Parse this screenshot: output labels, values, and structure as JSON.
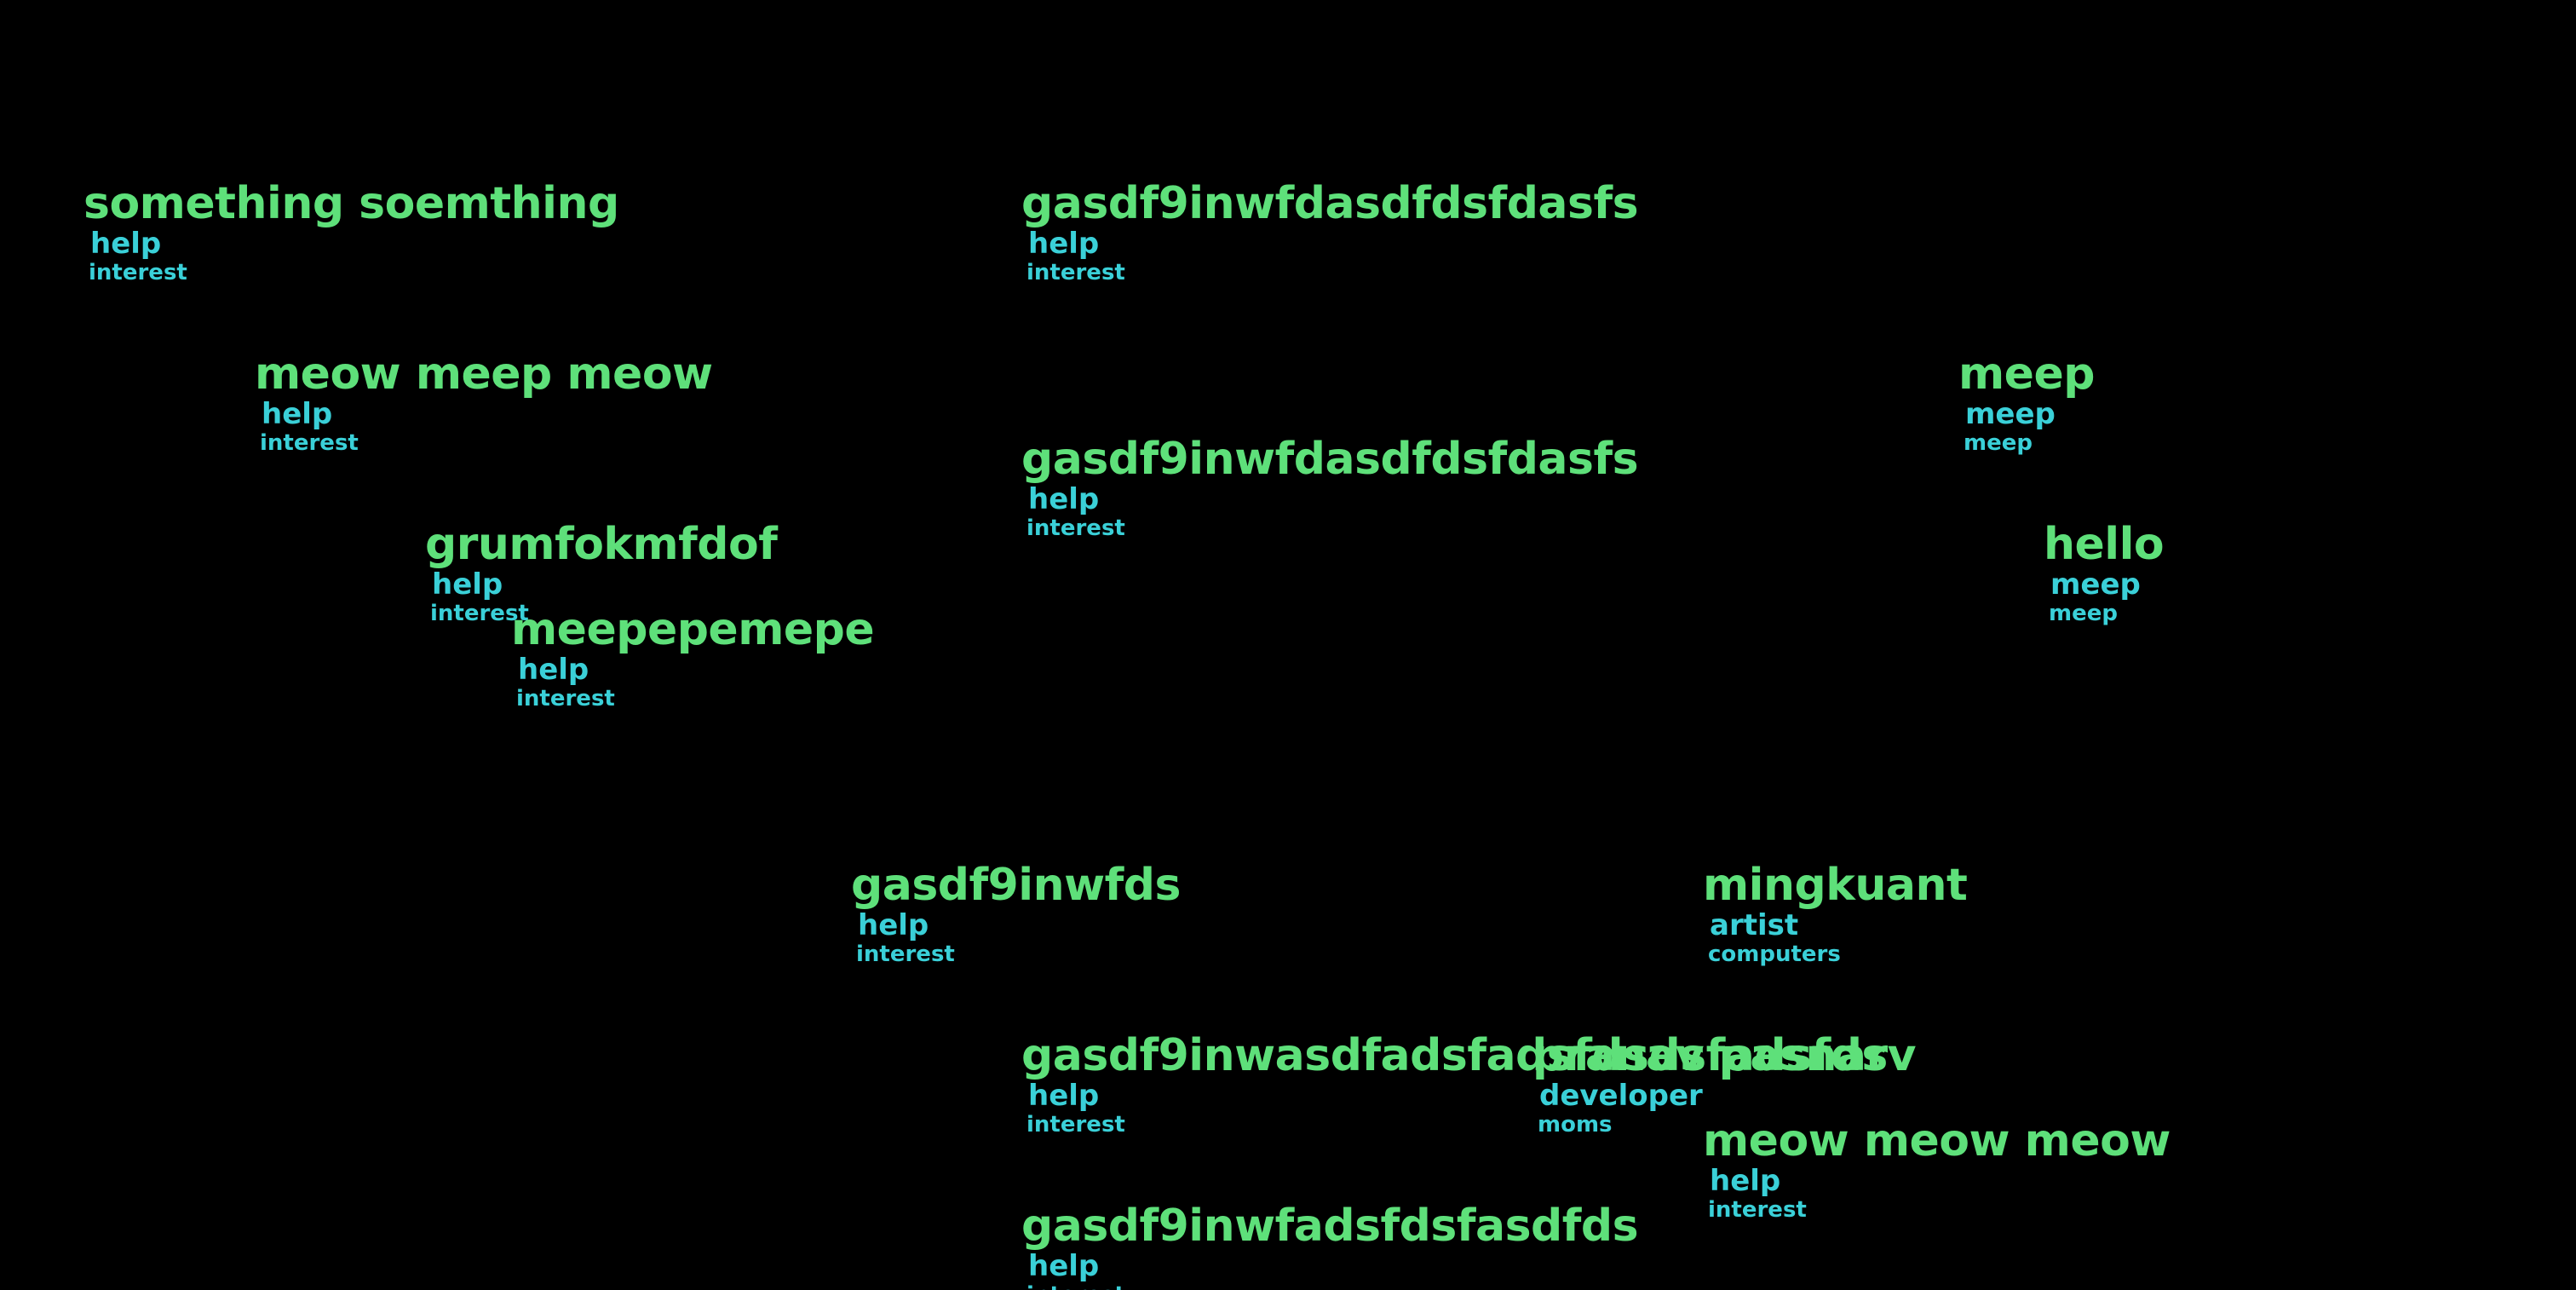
{
  "colors": {
    "background": "#000000",
    "name": "#5ee07a",
    "role": "#3ad0d8",
    "tag": "#3ad0d8"
  },
  "people": [
    {
      "name": "something soemthing",
      "role": "help",
      "tag": "interest"
    },
    {
      "name": "gasdf9inwfdasdfdsfdasfs",
      "role": "help",
      "tag": "interest"
    },
    {
      "name": "meow meep meow",
      "role": "help",
      "tag": "interest"
    },
    {
      "name": "meep",
      "role": "meep",
      "tag": "meep"
    },
    {
      "name": "gasdf9inwfdasdfdsfdasfs",
      "role": "help",
      "tag": "interest"
    },
    {
      "name": "grumfokmfdof",
      "role": "help",
      "tag": "interest"
    },
    {
      "name": "hello",
      "role": "meep",
      "tag": "meep"
    },
    {
      "name": "meepepemepe",
      "role": "help",
      "tag": "interest"
    },
    {
      "name": "gasdf9inwfds",
      "role": "help",
      "tag": "interest"
    },
    {
      "name": "mingkuant",
      "role": "artist",
      "tag": "computers"
    },
    {
      "name": "gasdf9inwasdfadsfadsfdsdsfadsfds",
      "role": "help",
      "tag": "interest"
    },
    {
      "name": "pranav pasnarv",
      "role": "developer",
      "tag": "moms"
    },
    {
      "name": "meow meow meow",
      "role": "help",
      "tag": "interest"
    },
    {
      "name": "gasdf9inwfadsfdsfasdfds",
      "role": "help",
      "tag": "interest"
    }
  ]
}
